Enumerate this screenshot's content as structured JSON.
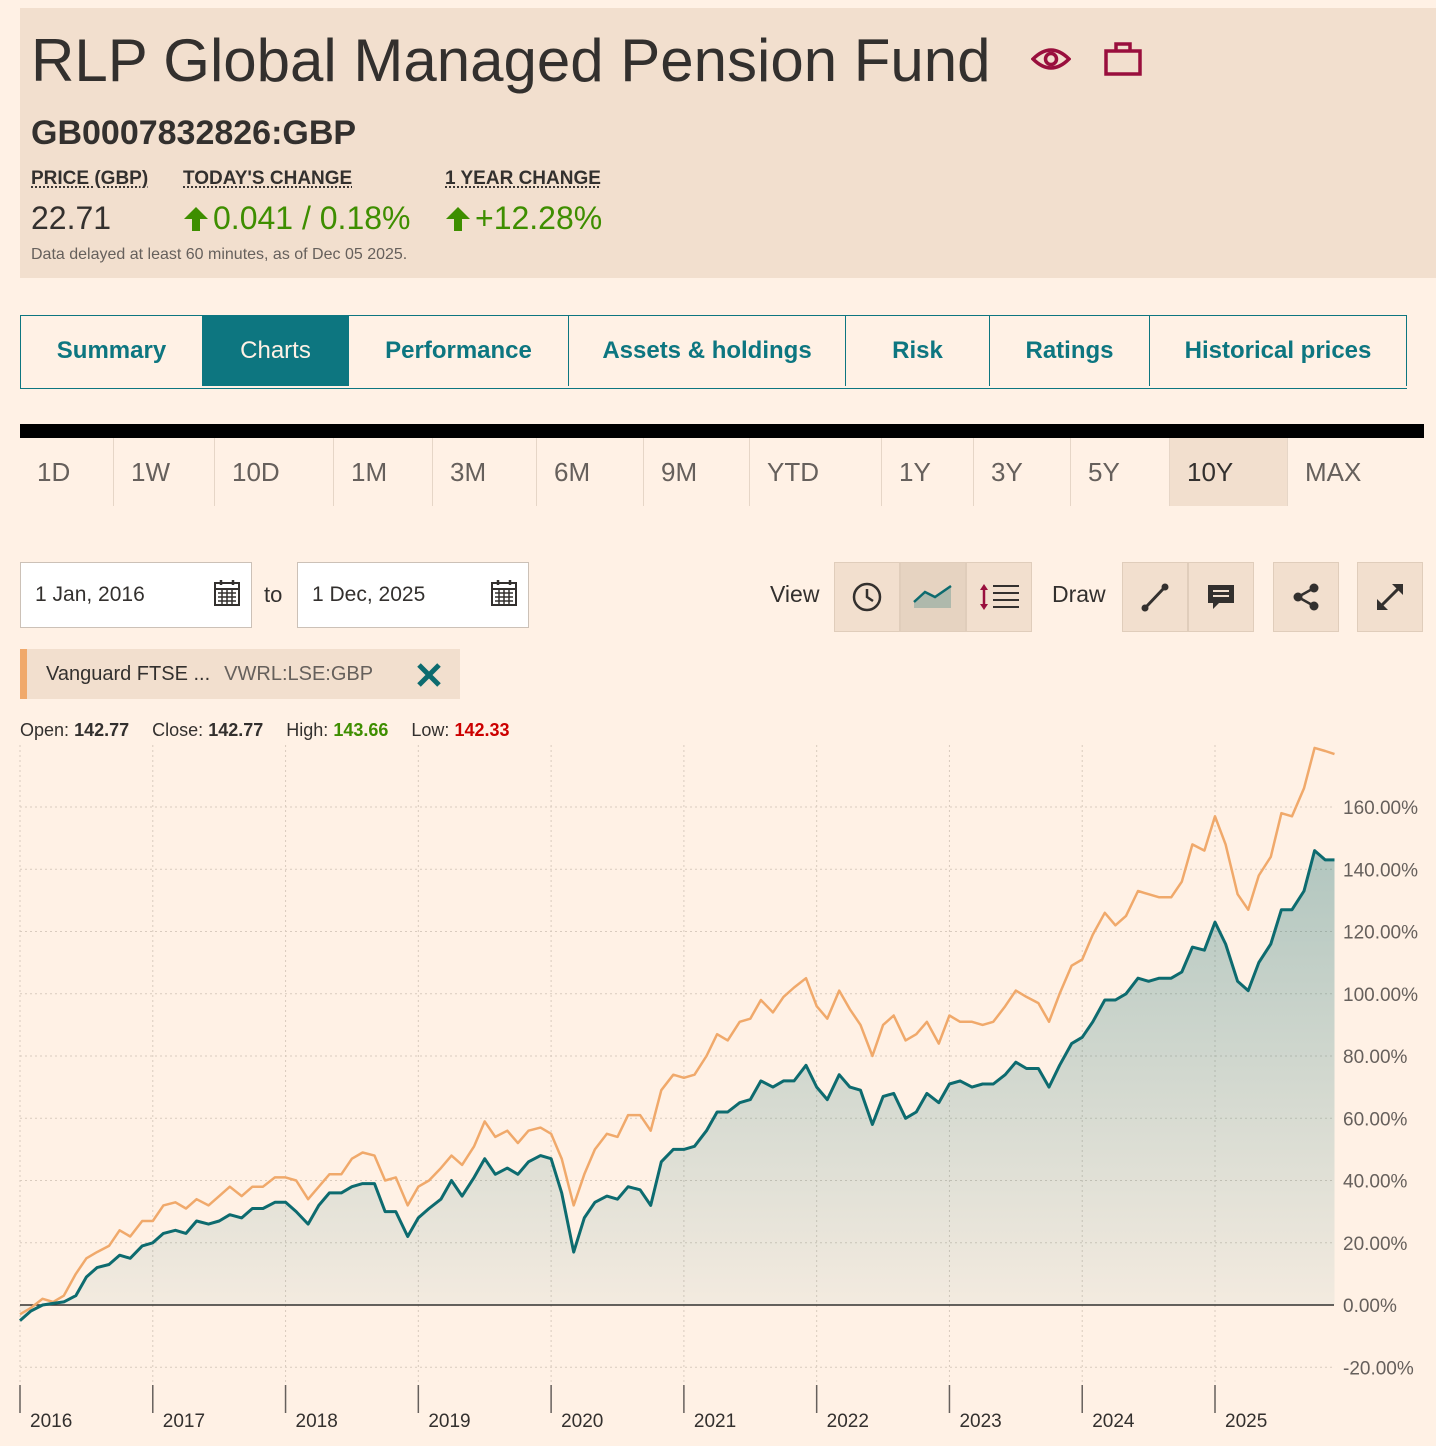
{
  "header": {
    "title": "RLP Global Managed Pension Fund",
    "ticker": "GB0007832826:GBP",
    "price_label": "PRICE (GBP)",
    "price": "22.71",
    "today_label": "TODAY'S CHANGE",
    "today_change": "0.041 / 0.18%",
    "year_label": "1 YEAR CHANGE",
    "year_change": "+12.28%",
    "delayed_note": "Data delayed at least 60 minutes, as of Dec 05 2025.",
    "icons": [
      "eye-icon",
      "briefcase-icon"
    ],
    "accent": "#990f3d"
  },
  "tabs": [
    {
      "label": "Summary",
      "active": false
    },
    {
      "label": "Charts",
      "active": true
    },
    {
      "label": "Performance",
      "active": false
    },
    {
      "label": "Assets & holdings",
      "active": false
    },
    {
      "label": "Risk",
      "active": false
    },
    {
      "label": "Ratings",
      "active": false
    },
    {
      "label": "Historical prices",
      "active": false
    }
  ],
  "periods": [
    "1D",
    "1W",
    "10D",
    "1M",
    "3M",
    "6M",
    "9M",
    "YTD",
    "1Y",
    "3Y",
    "5Y",
    "10Y",
    "MAX"
  ],
  "active_period": "10Y",
  "date_range": {
    "from": "1 Jan, 2016",
    "to_label": "to",
    "to": "1 Dec, 2025"
  },
  "toolbar": {
    "view_label": "View",
    "draw_label": "Draw",
    "icons": [
      "clock-icon",
      "line-chart-icon",
      "indicators-icon",
      "draw-line-icon",
      "annotation-icon",
      "share-icon",
      "expand-icon"
    ]
  },
  "comparison": {
    "name": "Vanguard FTSE ...",
    "code": "VWRL:LSE:GBP",
    "color": "#f0a96b"
  },
  "ohlc": {
    "open_label": "Open:",
    "open": "142.77",
    "close_label": "Close:",
    "close": "142.77",
    "high_label": "High:",
    "high": "143.66",
    "low_label": "Low:",
    "low": "142.33"
  },
  "chart_data": {
    "type": "area",
    "y_unit": "%",
    "ylim": [
      -25,
      180
    ],
    "y_ticks": [
      -20,
      0,
      20,
      40,
      60,
      80,
      100,
      120,
      140,
      160
    ],
    "y_tick_labels": [
      "-20.00%",
      "0.00%",
      "20.00%",
      "40.00%",
      "60.00%",
      "80.00%",
      "100.00%",
      "120.00%",
      "140.00%",
      "160.00%"
    ],
    "x_tick_labels": [
      "2016",
      "2017",
      "2018",
      "2019",
      "2020",
      "2021",
      "2022",
      "2023",
      "2024",
      "2025"
    ],
    "x_ticks": [
      2016,
      2017,
      2018,
      2019,
      2020,
      2021,
      2022,
      2023,
      2024,
      2025
    ],
    "x_range": [
      2016.0,
      2025.9
    ],
    "grid": true,
    "series": [
      {
        "color": "#0d6b6f",
        "fill": true,
        "points": [
          [
            2016.0,
            -5
          ],
          [
            2016.08,
            -2
          ],
          [
            2016.17,
            0
          ],
          [
            2016.25,
            0.5
          ],
          [
            2016.33,
            1
          ],
          [
            2016.42,
            3
          ],
          [
            2016.5,
            9
          ],
          [
            2016.58,
            12
          ],
          [
            2016.67,
            13
          ],
          [
            2016.75,
            16
          ],
          [
            2016.83,
            15
          ],
          [
            2016.92,
            19
          ],
          [
            2017.0,
            20
          ],
          [
            2017.08,
            23
          ],
          [
            2017.17,
            24
          ],
          [
            2017.25,
            23
          ],
          [
            2017.33,
            27
          ],
          [
            2017.42,
            26
          ],
          [
            2017.5,
            27
          ],
          [
            2017.58,
            29
          ],
          [
            2017.67,
            28
          ],
          [
            2017.75,
            31
          ],
          [
            2017.83,
            31
          ],
          [
            2017.92,
            33
          ],
          [
            2018.0,
            33
          ],
          [
            2018.08,
            30
          ],
          [
            2018.17,
            26
          ],
          [
            2018.25,
            32
          ],
          [
            2018.33,
            36
          ],
          [
            2018.42,
            36
          ],
          [
            2018.5,
            38
          ],
          [
            2018.58,
            39
          ],
          [
            2018.67,
            39
          ],
          [
            2018.75,
            30
          ],
          [
            2018.83,
            30
          ],
          [
            2018.92,
            22
          ],
          [
            2019.0,
            28
          ],
          [
            2019.08,
            31
          ],
          [
            2019.17,
            34
          ],
          [
            2019.25,
            40
          ],
          [
            2019.33,
            35
          ],
          [
            2019.42,
            41
          ],
          [
            2019.5,
            47
          ],
          [
            2019.58,
            42
          ],
          [
            2019.67,
            44
          ],
          [
            2019.75,
            42
          ],
          [
            2019.83,
            46
          ],
          [
            2019.92,
            48
          ],
          [
            2020.0,
            47
          ],
          [
            2020.08,
            36
          ],
          [
            2020.17,
            17
          ],
          [
            2020.25,
            28
          ],
          [
            2020.33,
            33
          ],
          [
            2020.42,
            35
          ],
          [
            2020.5,
            34
          ],
          [
            2020.58,
            38
          ],
          [
            2020.67,
            37
          ],
          [
            2020.75,
            32
          ],
          [
            2020.83,
            46
          ],
          [
            2020.92,
            50
          ],
          [
            2021.0,
            50
          ],
          [
            2021.08,
            51
          ],
          [
            2021.17,
            56
          ],
          [
            2021.25,
            62
          ],
          [
            2021.33,
            62
          ],
          [
            2021.42,
            65
          ],
          [
            2021.5,
            66
          ],
          [
            2021.58,
            72
          ],
          [
            2021.67,
            70
          ],
          [
            2021.75,
            72
          ],
          [
            2021.83,
            72
          ],
          [
            2021.92,
            77
          ],
          [
            2022.0,
            70
          ],
          [
            2022.08,
            66
          ],
          [
            2022.17,
            74
          ],
          [
            2022.25,
            70
          ],
          [
            2022.33,
            69
          ],
          [
            2022.42,
            58
          ],
          [
            2022.5,
            67
          ],
          [
            2022.58,
            68
          ],
          [
            2022.67,
            60
          ],
          [
            2022.75,
            62
          ],
          [
            2022.83,
            68
          ],
          [
            2022.92,
            65
          ],
          [
            2023.0,
            71
          ],
          [
            2023.08,
            72
          ],
          [
            2023.17,
            70
          ],
          [
            2023.25,
            71
          ],
          [
            2023.33,
            71
          ],
          [
            2023.42,
            74
          ],
          [
            2023.5,
            78
          ],
          [
            2023.58,
            76
          ],
          [
            2023.67,
            76
          ],
          [
            2023.75,
            70
          ],
          [
            2023.83,
            77
          ],
          [
            2023.92,
            84
          ],
          [
            2024.0,
            86
          ],
          [
            2024.08,
            91
          ],
          [
            2024.17,
            98
          ],
          [
            2024.25,
            98
          ],
          [
            2024.33,
            100
          ],
          [
            2024.42,
            105
          ],
          [
            2024.5,
            104
          ],
          [
            2024.58,
            105
          ],
          [
            2024.67,
            105
          ],
          [
            2024.75,
            107
          ],
          [
            2024.83,
            115
          ],
          [
            2024.92,
            114
          ],
          [
            2025.0,
            123
          ],
          [
            2025.08,
            116
          ],
          [
            2025.17,
            104
          ],
          [
            2025.25,
            101
          ],
          [
            2025.33,
            110
          ],
          [
            2025.42,
            116
          ],
          [
            2025.5,
            127
          ],
          [
            2025.58,
            127
          ],
          [
            2025.67,
            133
          ],
          [
            2025.75,
            146
          ],
          [
            2025.83,
            143
          ],
          [
            2025.9,
            143
          ]
        ]
      },
      {
        "name": "Vanguard FTSE ...",
        "color": "#f0a96b",
        "fill": false,
        "points": [
          [
            2016.0,
            -3
          ],
          [
            2016.08,
            -1
          ],
          [
            2016.17,
            2
          ],
          [
            2016.25,
            1
          ],
          [
            2016.33,
            3
          ],
          [
            2016.42,
            10
          ],
          [
            2016.5,
            15
          ],
          [
            2016.58,
            17
          ],
          [
            2016.67,
            19
          ],
          [
            2016.75,
            24
          ],
          [
            2016.83,
            22
          ],
          [
            2016.92,
            27
          ],
          [
            2017.0,
            27
          ],
          [
            2017.08,
            32
          ],
          [
            2017.17,
            33
          ],
          [
            2017.25,
            31
          ],
          [
            2017.33,
            34
          ],
          [
            2017.42,
            32
          ],
          [
            2017.5,
            35
          ],
          [
            2017.58,
            38
          ],
          [
            2017.67,
            35
          ],
          [
            2017.75,
            38
          ],
          [
            2017.83,
            38
          ],
          [
            2017.92,
            41
          ],
          [
            2018.0,
            41
          ],
          [
            2018.08,
            40
          ],
          [
            2018.17,
            34
          ],
          [
            2018.25,
            38
          ],
          [
            2018.33,
            42
          ],
          [
            2018.42,
            42
          ],
          [
            2018.5,
            47
          ],
          [
            2018.58,
            49
          ],
          [
            2018.67,
            48
          ],
          [
            2018.75,
            40
          ],
          [
            2018.83,
            41
          ],
          [
            2018.92,
            32
          ],
          [
            2019.0,
            38
          ],
          [
            2019.08,
            40
          ],
          [
            2019.17,
            44
          ],
          [
            2019.25,
            48
          ],
          [
            2019.33,
            45
          ],
          [
            2019.42,
            51
          ],
          [
            2019.5,
            59
          ],
          [
            2019.58,
            54
          ],
          [
            2019.67,
            56
          ],
          [
            2019.75,
            52
          ],
          [
            2019.83,
            56
          ],
          [
            2019.92,
            57
          ],
          [
            2020.0,
            55
          ],
          [
            2020.08,
            47
          ],
          [
            2020.17,
            32
          ],
          [
            2020.25,
            42
          ],
          [
            2020.33,
            50
          ],
          [
            2020.42,
            55
          ],
          [
            2020.5,
            54
          ],
          [
            2020.58,
            61
          ],
          [
            2020.67,
            61
          ],
          [
            2020.75,
            56
          ],
          [
            2020.83,
            69
          ],
          [
            2020.92,
            74
          ],
          [
            2021.0,
            73
          ],
          [
            2021.08,
            74
          ],
          [
            2021.17,
            80
          ],
          [
            2021.25,
            87
          ],
          [
            2021.33,
            85
          ],
          [
            2021.42,
            91
          ],
          [
            2021.5,
            92
          ],
          [
            2021.58,
            98
          ],
          [
            2021.67,
            94
          ],
          [
            2021.75,
            99
          ],
          [
            2021.83,
            102
          ],
          [
            2021.92,
            105
          ],
          [
            2022.0,
            96
          ],
          [
            2022.08,
            92
          ],
          [
            2022.17,
            101
          ],
          [
            2022.25,
            95
          ],
          [
            2022.33,
            90
          ],
          [
            2022.42,
            80
          ],
          [
            2022.5,
            90
          ],
          [
            2022.58,
            93
          ],
          [
            2022.67,
            85
          ],
          [
            2022.75,
            87
          ],
          [
            2022.83,
            91
          ],
          [
            2022.92,
            84
          ],
          [
            2023.0,
            93
          ],
          [
            2023.08,
            91
          ],
          [
            2023.17,
            91
          ],
          [
            2023.25,
            90
          ],
          [
            2023.33,
            91
          ],
          [
            2023.42,
            96
          ],
          [
            2023.5,
            101
          ],
          [
            2023.58,
            99
          ],
          [
            2023.67,
            97
          ],
          [
            2023.75,
            91
          ],
          [
            2023.83,
            100
          ],
          [
            2023.92,
            109
          ],
          [
            2024.0,
            111
          ],
          [
            2024.08,
            119
          ],
          [
            2024.17,
            126
          ],
          [
            2024.25,
            122
          ],
          [
            2024.33,
            125
          ],
          [
            2024.42,
            133
          ],
          [
            2024.5,
            132
          ],
          [
            2024.58,
            131
          ],
          [
            2024.67,
            131
          ],
          [
            2024.75,
            136
          ],
          [
            2024.83,
            148
          ],
          [
            2024.92,
            146
          ],
          [
            2025.0,
            157
          ],
          [
            2025.08,
            148
          ],
          [
            2025.17,
            132
          ],
          [
            2025.25,
            127
          ],
          [
            2025.33,
            138
          ],
          [
            2025.42,
            144
          ],
          [
            2025.5,
            158
          ],
          [
            2025.58,
            157
          ],
          [
            2025.67,
            166
          ],
          [
            2025.75,
            179
          ],
          [
            2025.83,
            178
          ],
          [
            2025.9,
            177
          ]
        ]
      }
    ]
  }
}
